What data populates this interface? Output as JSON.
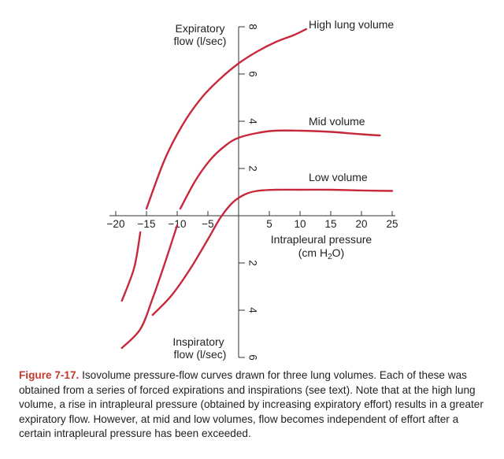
{
  "chart_data": {
    "type": "line",
    "x_axis": {
      "label_line1": "Intrapleural pressure",
      "label_line2_pre": "(cm H",
      "label_line2_sub": "2",
      "label_line2_post": "O)",
      "range": [
        -20,
        25
      ],
      "ticks": [
        -20,
        -15,
        -10,
        -5,
        5,
        10,
        15,
        20,
        25
      ],
      "tick_labels": [
        "−20",
        "−15",
        "−10",
        "−5",
        "5",
        "10",
        "15",
        "20",
        "25"
      ]
    },
    "y_axis": {
      "upper_label_line1": "Expiratory",
      "upper_label_line2": "flow (l/sec)",
      "lower_label_line1": "Inspiratory",
      "lower_label_line2": "flow (l/sec)",
      "range": [
        -6,
        8
      ],
      "ticks": [
        8,
        6,
        4,
        2,
        -2,
        -4,
        -6
      ],
      "tick_labels": [
        "8",
        "6",
        "4",
        "2",
        "2",
        "4",
        "6"
      ]
    },
    "series": [
      {
        "name": "High lung volume",
        "segments": [
          [
            [
              -15,
              0.3
            ],
            [
              -12,
              2.4
            ],
            [
              -9,
              3.9
            ],
            [
              -6,
              5.0
            ],
            [
              -3,
              5.8
            ],
            [
              0,
              6.45
            ],
            [
              3,
              6.95
            ],
            [
              6,
              7.35
            ],
            [
              9,
              7.65
            ],
            [
              11,
              7.9
            ]
          ],
          [
            [
              -16,
              -0.7
            ],
            [
              -17,
              -2.2
            ],
            [
              -19,
              -3.6
            ]
          ]
        ]
      },
      {
        "name": "Mid volume",
        "segments": [
          [
            [
              -9.5,
              0.3
            ],
            [
              -7,
              1.5
            ],
            [
              -4.5,
              2.4
            ],
            [
              -2,
              3.0
            ],
            [
              0,
              3.3
            ],
            [
              3,
              3.5
            ],
            [
              6,
              3.6
            ],
            [
              10,
              3.6
            ],
            [
              15,
              3.55
            ],
            [
              20,
              3.45
            ],
            [
              23,
              3.4
            ]
          ],
          [
            [
              -10,
              -0.4
            ],
            [
              -12,
              -2.0
            ],
            [
              -14,
              -3.5
            ],
            [
              -16,
              -4.8
            ],
            [
              -19,
              -5.6
            ]
          ]
        ]
      },
      {
        "name": "Low volume",
        "segments": [
          [
            [
              -14,
              -4.2
            ],
            [
              -11,
              -3.4
            ],
            [
              -8,
              -2.3
            ],
            [
              -5,
              -1.0
            ],
            [
              -3,
              -0.1
            ],
            [
              -1,
              0.55
            ],
            [
              1,
              0.9
            ],
            [
              3,
              1.05
            ],
            [
              6,
              1.1
            ],
            [
              10,
              1.1
            ],
            [
              15,
              1.1
            ],
            [
              20,
              1.07
            ],
            [
              25,
              1.05
            ]
          ]
        ]
      }
    ],
    "annotations": [
      "High lung volume",
      "Mid volume",
      "Low volume"
    ]
  },
  "caption": {
    "figure_label": "Figure 7-17.",
    "text": " Isovolume pressure-flow curves drawn for three lung volumes. Each of these was obtained from a series of forced expirations and inspirations (see text). Note that at the high lung volume, a rise in intrapleural pressure (obtained by increasing expiratory effort) results in a greater expiratory flow. However, at mid and low volumes, flow becomes independent of effort after a certain intrapleural pressure has been exceeded."
  },
  "colors": {
    "curve": "#c8283c",
    "axis": "#333333",
    "figure_label": "#c0392b"
  }
}
